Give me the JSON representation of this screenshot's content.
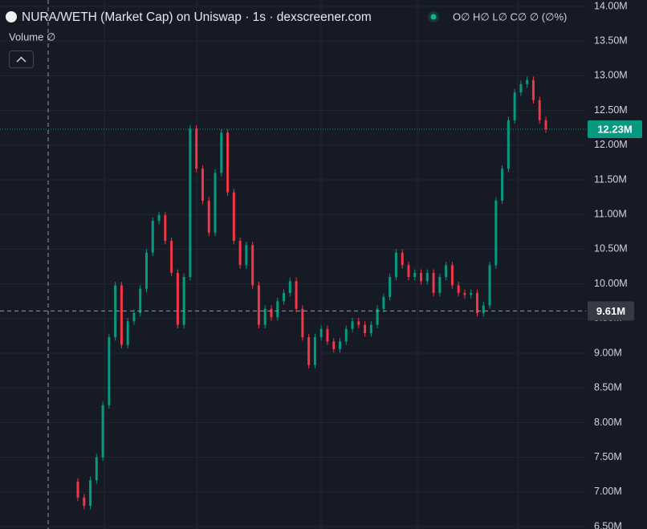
{
  "chart_data": {
    "type": "candlestick",
    "title": "NURA/WETH (Market Cap) on Uniswap · 1s · dexscreener.com",
    "ohlc_legend": "O∅ H∅ L∅ C∅ ∅ (∅%)",
    "volume_legend": "Volume ∅",
    "up_color": "#089981",
    "down_color": "#f23645",
    "grid": true,
    "categories": [
      null,
      null,
      null,
      null,
      null,
      null,
      null,
      null,
      null,
      null,
      null,
      null,
      null,
      null,
      null,
      null,
      null,
      null,
      null,
      null,
      null,
      null,
      null,
      null,
      null,
      null,
      null,
      null,
      null,
      null,
      null,
      null,
      null,
      null,
      null,
      null,
      null,
      null,
      null,
      null,
      null,
      null,
      null,
      null,
      null,
      null,
      null,
      null,
      null,
      null,
      null,
      null,
      null,
      null,
      null,
      null,
      null,
      null,
      null,
      null,
      null,
      null,
      null,
      null,
      null,
      null,
      null,
      null,
      null,
      null,
      null,
      null,
      null,
      null,
      null,
      null
    ],
    "open": [
      7.15,
      6.92,
      6.8,
      7.17,
      7.5,
      8.25,
      9.23,
      9.98,
      9.12,
      9.46,
      9.58,
      9.93,
      10.45,
      10.91,
      10.99,
      10.62,
      10.16,
      9.41,
      10.1,
      12.24,
      11.66,
      11.2,
      10.74,
      11.6,
      12.18,
      11.32,
      10.62,
      10.27,
      10.56,
      9.98,
      9.41,
      9.64,
      9.52,
      9.75,
      9.87,
      10.04,
      9.64,
      9.23,
      8.83,
      9.23,
      9.35,
      9.17,
      9.06,
      9.17,
      9.35,
      9.46,
      9.41,
      9.29,
      9.41,
      9.64,
      9.81,
      10.1,
      10.45,
      10.27,
      10.1,
      10.16,
      10.04,
      10.16,
      9.87,
      10.1,
      10.27,
      9.98,
      9.87,
      9.84,
      9.87,
      9.58,
      9.69,
      10.27,
      11.2,
      11.66,
      12.36,
      12.76,
      12.88,
      12.94,
      12.65,
      12.36
    ],
    "high": [
      7.2,
      6.97,
      7.22,
      7.55,
      8.3,
      9.28,
      10.03,
      10.03,
      9.51,
      9.63,
      9.98,
      10.5,
      10.96,
      11.04,
      11.04,
      10.67,
      10.21,
      10.15,
      12.29,
      12.29,
      11.71,
      11.25,
      11.65,
      12.23,
      12.23,
      11.37,
      10.67,
      10.61,
      10.61,
      10.03,
      9.69,
      9.69,
      9.8,
      9.92,
      10.09,
      10.09,
      9.69,
      9.28,
      9.28,
      9.4,
      9.4,
      9.22,
      9.22,
      9.4,
      9.51,
      9.51,
      9.46,
      9.46,
      9.69,
      9.86,
      10.15,
      10.5,
      10.5,
      10.32,
      10.21,
      10.21,
      10.21,
      10.21,
      10.15,
      10.32,
      10.32,
      10.03,
      9.92,
      9.92,
      9.92,
      9.74,
      10.32,
      11.25,
      11.71,
      12.41,
      12.81,
      12.93,
      12.99,
      12.99,
      12.7,
      12.41
    ],
    "low": [
      6.87,
      6.75,
      6.75,
      7.12,
      7.45,
      8.2,
      9.18,
      9.07,
      9.07,
      9.41,
      9.53,
      9.88,
      10.4,
      10.86,
      10.57,
      10.11,
      9.36,
      9.36,
      10.05,
      11.61,
      11.15,
      10.69,
      10.69,
      11.55,
      11.27,
      10.57,
      10.22,
      10.22,
      9.93,
      9.36,
      9.36,
      9.47,
      9.47,
      9.7,
      9.82,
      9.59,
      9.18,
      8.78,
      8.78,
      9.18,
      9.12,
      9.01,
      9.01,
      9.12,
      9.3,
      9.36,
      9.24,
      9.24,
      9.36,
      9.59,
      9.76,
      10.05,
      10.22,
      10.05,
      10.05,
      9.99,
      9.99,
      9.82,
      9.82,
      10.05,
      9.93,
      9.82,
      9.79,
      9.79,
      9.53,
      9.53,
      9.64,
      10.22,
      11.15,
      11.61,
      12.31,
      12.71,
      12.83,
      12.6,
      12.31,
      12.18
    ],
    "close": [
      6.92,
      6.8,
      7.17,
      7.5,
      8.25,
      9.23,
      9.98,
      9.12,
      9.46,
      9.58,
      9.93,
      10.45,
      10.91,
      10.99,
      10.62,
      10.16,
      9.41,
      10.1,
      12.24,
      11.66,
      11.2,
      10.74,
      11.6,
      12.18,
      11.32,
      10.62,
      10.27,
      10.56,
      9.98,
      9.41,
      9.64,
      9.52,
      9.75,
      9.87,
      10.04,
      9.64,
      9.23,
      8.83,
      9.23,
      9.35,
      9.17,
      9.06,
      9.17,
      9.35,
      9.46,
      9.41,
      9.29,
      9.41,
      9.64,
      9.81,
      10.1,
      10.45,
      10.27,
      10.1,
      10.16,
      10.04,
      10.16,
      9.87,
      10.1,
      10.27,
      9.98,
      9.87,
      9.84,
      9.87,
      9.58,
      9.69,
      10.27,
      11.2,
      11.66,
      12.36,
      12.76,
      12.88,
      12.94,
      12.65,
      12.36,
      12.23
    ],
    "ylim": [
      6.466,
      14.093
    ],
    "yticks": [
      {
        "value": 6.5,
        "label": "6.50M"
      },
      {
        "value": 7,
        "label": "7.00M"
      },
      {
        "value": 7.5,
        "label": "7.50M"
      },
      {
        "value": 8,
        "label": "8.00M"
      },
      {
        "value": 8.5,
        "label": "8.50M"
      },
      {
        "value": 9,
        "label": "9.00M"
      },
      {
        "value": 9.5,
        "label": "9.50M"
      },
      {
        "value": 10,
        "label": "10.00M"
      },
      {
        "value": 10.5,
        "label": "10.50M"
      },
      {
        "value": 11,
        "label": "11.00M"
      },
      {
        "value": 11.5,
        "label": "11.50M"
      },
      {
        "value": 12,
        "label": "12.00M"
      },
      {
        "value": 12.5,
        "label": "12.50M"
      },
      {
        "value": 13,
        "label": "13.00M"
      },
      {
        "value": 13.5,
        "label": "13.50M"
      },
      {
        "value": 14,
        "label": "14.00M"
      }
    ],
    "last_price": {
      "value": 12.23,
      "label": "12.23M"
    },
    "crosshair": {
      "value": 9.61,
      "label": "9.61M"
    }
  }
}
